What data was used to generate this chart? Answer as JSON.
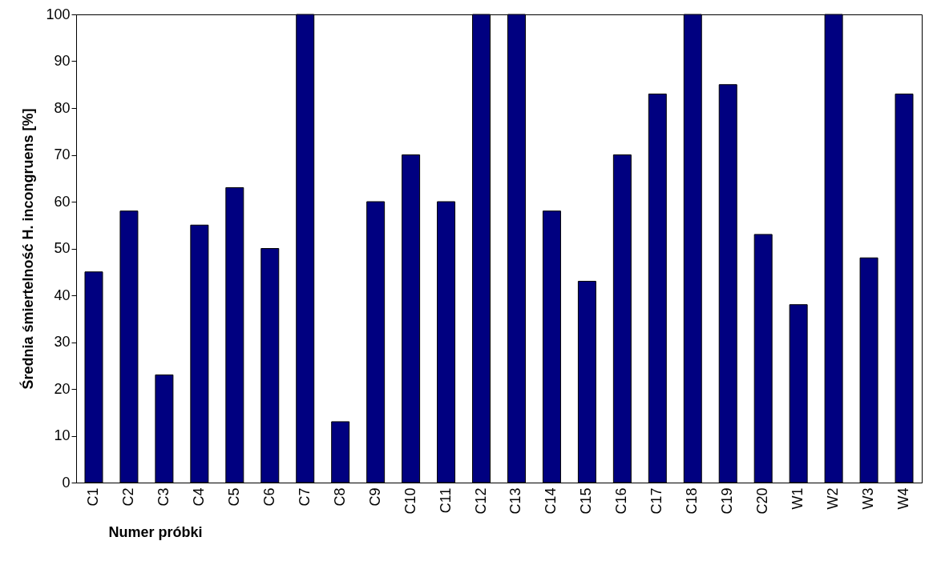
{
  "chart_data": {
    "type": "bar",
    "xlabel": "Numer próbki",
    "ylabel": "Średnia śmiertelność  H. incongruens [%]",
    "categories": [
      "C1",
      "C2",
      "C3",
      "C4",
      "C5",
      "C6",
      "C7",
      "C8",
      "C9",
      "C10",
      "C11",
      "C12",
      "C13",
      "C14",
      "C15",
      "C16",
      "C17",
      "C18",
      "C19",
      "C20",
      "W1",
      "W2",
      "W3",
      "W4"
    ],
    "values": [
      45,
      58,
      23,
      55,
      63,
      50,
      100,
      13,
      60,
      70,
      60,
      100,
      100,
      58,
      43,
      70,
      83,
      100,
      85,
      53,
      38,
      100,
      48,
      83
    ],
    "color": "#000080",
    "ylim": [
      0,
      100
    ],
    "yticks": [
      0,
      10,
      20,
      30,
      40,
      50,
      60,
      70,
      80,
      90,
      100
    ],
    "grid": false,
    "legend": false
  }
}
